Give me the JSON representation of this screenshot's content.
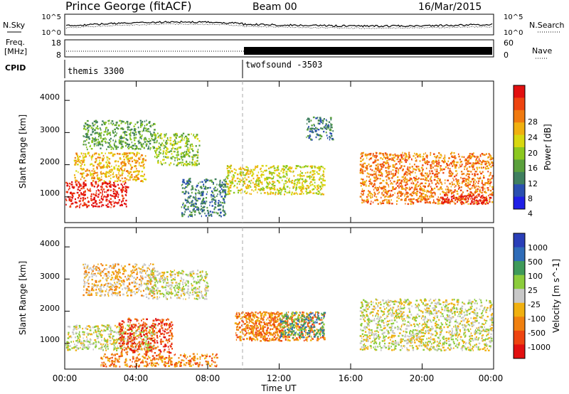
{
  "header": {
    "station": "Prince George (fitACF)",
    "beam": "Beam 00",
    "date": "16/Mar/2015"
  },
  "noise_panel": {
    "left_label": "N.Sky",
    "right_label": "N.Search",
    "left_ticks": [
      "10^5",
      "10^0"
    ],
    "right_ticks": [
      "10^5",
      "10^0"
    ]
  },
  "freq_panel": {
    "left_label_line1": "Freq.",
    "left_label_line2": "[MHz]",
    "right_label": "Nave",
    "left_ticks": [
      "18",
      "8"
    ],
    "right_ticks": [
      "60",
      "0"
    ]
  },
  "cpid_panel": {
    "label": "CPID",
    "programs": [
      {
        "name": "themis 3300",
        "start_hour": 0
      },
      {
        "name": "twofsound -3503",
        "start_hour": 10
      }
    ]
  },
  "time_axis": {
    "title": "Time UT",
    "ticks": [
      "00:00",
      "04:00",
      "08:00",
      "12:00",
      "16:00",
      "20:00",
      "00:00"
    ]
  },
  "chart_data": [
    {
      "type": "heatmap",
      "name": "power",
      "ylabel": "Slant Range [km]",
      "yticks": [
        "1000",
        "2000",
        "3000",
        "4000"
      ],
      "ylim": [
        200,
        4600
      ],
      "xlim_hours": [
        0,
        24
      ],
      "colorbar": {
        "label": "Power [dB]",
        "ticks": [
          "4",
          "8",
          "12",
          "16",
          "20",
          "24",
          "28"
        ],
        "colors": [
          "#1f1fe6",
          "#2a4fb0",
          "#3f7f5f",
          "#5aa03c",
          "#8cc820",
          "#d8d810",
          "#f0b010",
          "#f07a10",
          "#ee4410",
          "#e21010"
        ]
      },
      "scatter_regions": [
        {
          "t": [
            0.0,
            3.5
          ],
          "r": [
            700,
            1500
          ],
          "level": 9
        },
        {
          "t": [
            0.5,
            4.5
          ],
          "r": [
            1500,
            2400
          ],
          "level": 6
        },
        {
          "t": [
            1.0,
            5.0
          ],
          "r": [
            2500,
            3400
          ],
          "level": 3
        },
        {
          "t": [
            5.0,
            7.5
          ],
          "r": [
            2000,
            3000
          ],
          "level": 4
        },
        {
          "t": [
            6.5,
            9.0
          ],
          "r": [
            400,
            1600
          ],
          "level": 2
        },
        {
          "t": [
            9.0,
            14.5
          ],
          "r": [
            1100,
            2000
          ],
          "level": 5
        },
        {
          "t": [
            13.5,
            15.0
          ],
          "r": [
            2800,
            3500
          ],
          "level": 2
        },
        {
          "t": [
            16.5,
            24.0
          ],
          "r": [
            800,
            2400
          ],
          "level": 7
        },
        {
          "t": [
            21.0,
            24.0
          ],
          "r": [
            800,
            1100
          ],
          "level": 9
        }
      ]
    },
    {
      "type": "heatmap",
      "name": "velocity",
      "ylabel": "Slant Range [km]",
      "yticks": [
        "1000",
        "2000",
        "3000",
        "4000"
      ],
      "ylim": [
        200,
        4600
      ],
      "xlim_hours": [
        0,
        24
      ],
      "colorbar": {
        "label": "Velocity [m s^-1]",
        "ticks": [
          "1000",
          "500",
          "100",
          "25",
          "-25",
          "-100",
          "-500",
          "-1000"
        ],
        "colors": [
          "#2a3fb8",
          "#2f6cb8",
          "#3f9a5a",
          "#8ccc3c",
          "#c8c8c8",
          "#f0b010",
          "#f08010",
          "#ee4410",
          "#e21010"
        ]
      },
      "scatter_regions": [
        {
          "t": [
            0.0,
            5.0
          ],
          "r": [
            800,
            1600
          ],
          "level": 4
        },
        {
          "t": [
            3.0,
            6.0
          ],
          "r": [
            700,
            1800
          ],
          "level": 7
        },
        {
          "t": [
            1.0,
            5.0
          ],
          "r": [
            2500,
            3500
          ],
          "level": 5
        },
        {
          "t": [
            4.5,
            8.0
          ],
          "r": [
            2400,
            3300
          ],
          "level": 4
        },
        {
          "t": [
            2.0,
            8.5
          ],
          "r": [
            300,
            700
          ],
          "level": 6
        },
        {
          "t": [
            9.5,
            14.5
          ],
          "r": [
            1100,
            2000
          ],
          "level": 6
        },
        {
          "t": [
            10.0,
            12.5
          ],
          "r": [
            1100,
            2000
          ],
          "level": 6
        },
        {
          "t": [
            12.0,
            14.5
          ],
          "r": [
            1200,
            2000
          ],
          "level": 2
        },
        {
          "t": [
            16.5,
            24.0
          ],
          "r": [
            800,
            2400
          ],
          "level": 4
        }
      ]
    }
  ]
}
